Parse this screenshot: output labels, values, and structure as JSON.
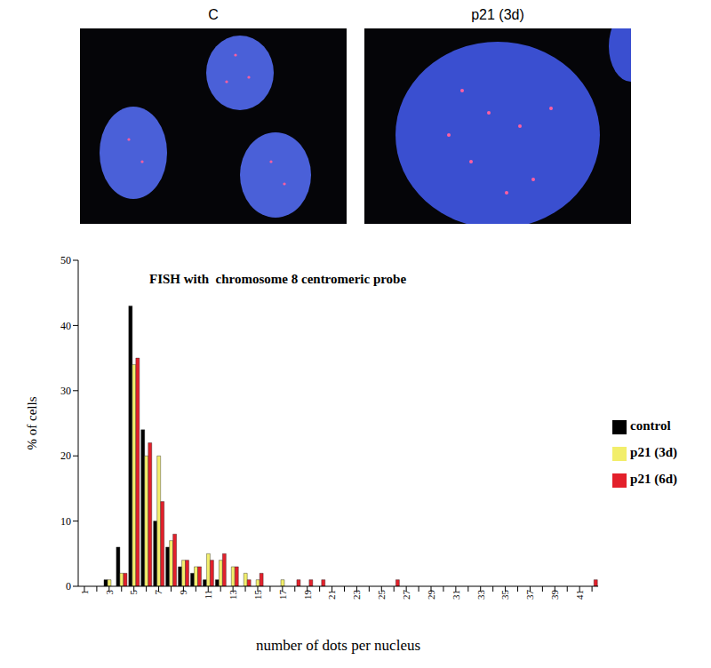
{
  "images": [
    {
      "label": "C"
    },
    {
      "label": "p21 (3d)"
    }
  ],
  "chart_data": {
    "type": "bar",
    "title": "FISH with  chromosome 8 centromeric probe",
    "x_label": "number of dots per nucleus",
    "y_label": "% of cells",
    "categories": [
      "1",
      null,
      "3",
      null,
      "5",
      null,
      "7",
      null,
      "9",
      null,
      "11",
      null,
      "13",
      null,
      "15",
      null,
      "17",
      null,
      "19",
      null,
      "21",
      null,
      "23",
      null,
      "25",
      null,
      "27",
      null,
      "29",
      null,
      "31",
      null,
      "33",
      null,
      "35",
      null,
      "37",
      null,
      "39",
      null,
      "41",
      null
    ],
    "series": [
      {
        "name": "control",
        "color": "#000000",
        "values": [
          0,
          0,
          1,
          6,
          43,
          24,
          10,
          6,
          3,
          2,
          1,
          1,
          0,
          0,
          0,
          0,
          0,
          0,
          0,
          0,
          0,
          0,
          0,
          0,
          0,
          0,
          0,
          0,
          0,
          0,
          0,
          0,
          0,
          0,
          0,
          0,
          0,
          0,
          0,
          0,
          0,
          0
        ]
      },
      {
        "name": "p21 (3d)",
        "color": "#f2ee6b",
        "values": [
          0,
          0,
          1,
          2,
          34,
          20,
          20,
          7,
          4,
          3,
          5,
          4,
          3,
          2,
          1,
          0,
          1,
          0,
          0,
          0,
          0,
          0,
          0,
          0,
          0,
          0,
          0,
          0,
          0,
          0,
          0,
          0,
          0,
          0,
          0,
          0,
          0,
          0,
          0,
          0,
          0,
          0
        ]
      },
      {
        "name": "p21 (6d)",
        "color": "#e3202b",
        "values": [
          0,
          0,
          0,
          2,
          35,
          22,
          13,
          8,
          4,
          3,
          4,
          5,
          3,
          1,
          2,
          0,
          0,
          1,
          1,
          1,
          0,
          0,
          0,
          0,
          0,
          1,
          0,
          0,
          0,
          0,
          0,
          0,
          0,
          0,
          0,
          0,
          0,
          0,
          0,
          0,
          0,
          1
        ]
      }
    ],
    "ylim": [
      0,
      50
    ],
    "yticks": [
      0,
      10,
      20,
      30,
      40,
      50
    ],
    "grid": false,
    "legend": "right"
  }
}
